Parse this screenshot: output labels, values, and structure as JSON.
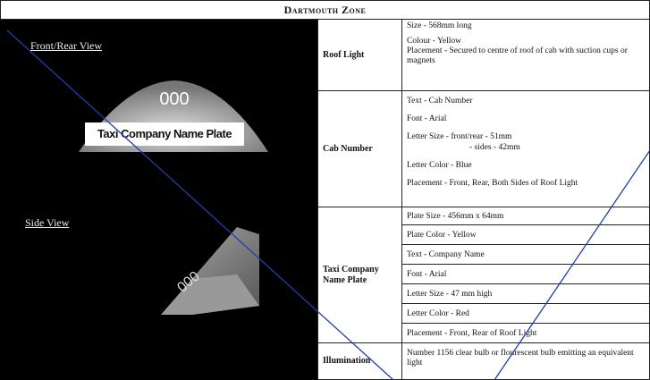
{
  "header": {
    "title": "Dartmouth Zone"
  },
  "left_panel": {
    "front_rear_label": "Front/Rear View",
    "front_number": "000",
    "front_plate": "Taxi Company Name Plate",
    "side_label": "Side View",
    "side_number": "000"
  },
  "table": {
    "rows": [
      {
        "label": "Roof Light",
        "lines": [
          "Size - 568mm long",
          "Colour - Yellow",
          "Placement - Secured to centre of roof of cab with suction cups or magnets"
        ]
      },
      {
        "label": "Cab Number",
        "lines": [
          "Text - Cab Number",
          "Font - Arial",
          "Letter Size - front/rear - 51mm",
          "- sides - 42mm",
          "Letter Color - Blue",
          "Placement - Front, Rear, Both Sides of Roof Light"
        ]
      },
      {
        "label": "Taxi Company Name Plate",
        "lines": [
          "Plate Size - 456mm x 64mm",
          "Plate Color - Yellow",
          "Text - Company Name",
          "Font - Arial",
          "Letter Size - 47 mm high",
          "Letter Color - Red",
          "Placement - Front, Rear of Roof Light"
        ]
      },
      {
        "label": "Illumination",
        "lines": [
          "Number 1156 clear bulb or flourescent bulb emitting an equivalent light"
        ]
      }
    ]
  }
}
